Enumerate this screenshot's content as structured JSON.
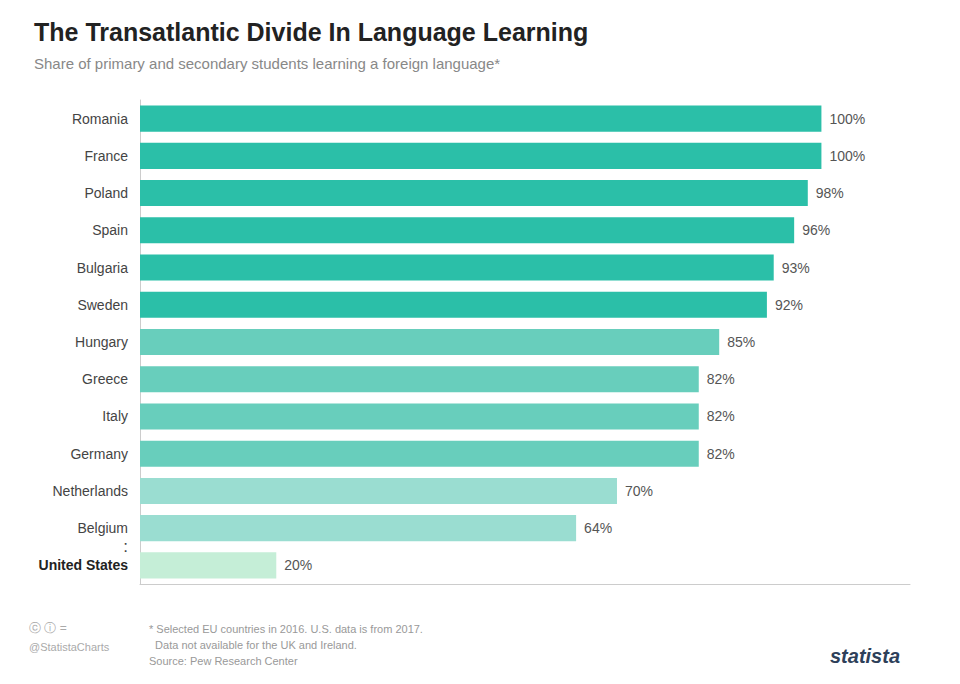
{
  "chart_data": {
    "type": "bar",
    "orientation": "horizontal",
    "title": "The Transatlantic Divide In Language Learning",
    "subtitle": "Share of primary and secondary students learning a foreign language*",
    "categories": [
      "Romania",
      "France",
      "Poland",
      "Spain",
      "Bulgaria",
      "Sweden",
      "Hungary",
      "Greece",
      "Italy",
      "Germany",
      "Netherlands",
      "Belgium",
      "United States"
    ],
    "values": [
      100,
      100,
      98,
      96,
      93,
      92,
      85,
      82,
      82,
      82,
      70,
      64,
      20
    ],
    "value_labels": [
      "100%",
      "100%",
      "98%",
      "96%",
      "93%",
      "92%",
      "85%",
      "82%",
      "82%",
      "82%",
      "70%",
      "64%",
      "20%"
    ],
    "colors": [
      "#2bbfa8",
      "#2bbfa8",
      "#2bbfa8",
      "#2bbfa8",
      "#2bbfa8",
      "#2bbfa8",
      "#68cebc",
      "#68cebc",
      "#68cebc",
      "#68cebc",
      "#9addd1",
      "#9addd1",
      "#c5eed7"
    ],
    "xlim": [
      0,
      113
    ],
    "data_labels": true,
    "tick_labels": "y",
    "grid": false,
    "annotations": [
      ":",
      "* Selected EU countries in 2016. U.S. data is from 2017.",
      "  Data not available for the UK and Ireland.",
      "Source: Pew Research Center",
      "ⓒ ⓘ =",
      "@StatistaCharts",
      "statista"
    ]
  }
}
